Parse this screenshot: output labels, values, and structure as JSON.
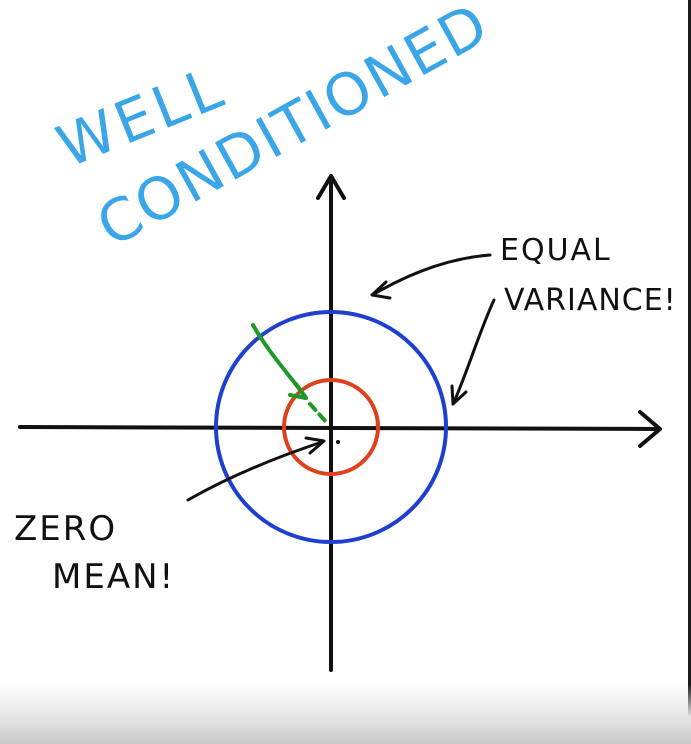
{
  "title": {
    "line1": "WELL",
    "line2": "CONDITIONED",
    "color": "#3aa6e8"
  },
  "labels": {
    "equal_line1": "EQUAL",
    "equal_line2": "VARIANCE!",
    "zero_line1": "ZERO",
    "zero_line2": "MEAN!"
  },
  "colors": {
    "axes": "#111111",
    "outer_circle": "#1f3fd0",
    "inner_circle": "#e0401c",
    "shift_arrow": "#1d9a26",
    "ink": "#111111"
  },
  "icons": {
    "x_axis_arrowhead": "arrowhead-right-icon",
    "y_axis_arrowhead": "arrowhead-up-icon",
    "shift_arrow": "curved-arrow-icon",
    "pointer_arrows": "curved-arrow-icon"
  }
}
